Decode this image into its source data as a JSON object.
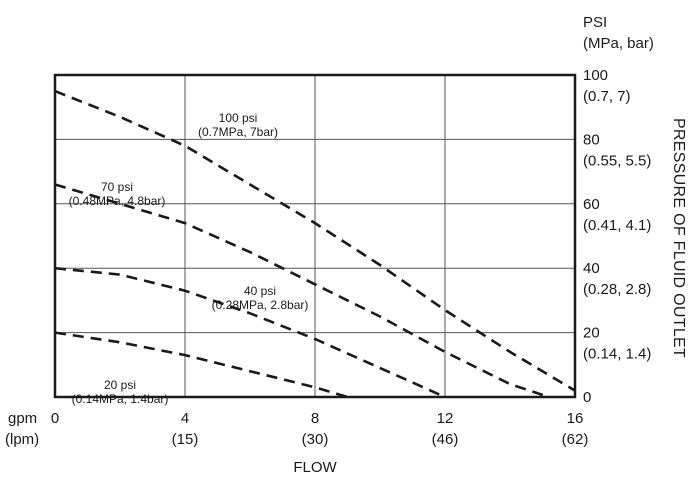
{
  "chart_data": {
    "type": "line",
    "title": "",
    "xlabel": "FLOW",
    "ylabel": "PRESSURE OF FLUID OUTLET",
    "x_unit_primary": "gpm",
    "x_unit_secondary": "(lpm)",
    "y_unit_primary": "PSI",
    "y_unit_secondary": "(MPa, bar)",
    "xlim": [
      0,
      16
    ],
    "ylim": [
      0,
      100
    ],
    "grid": true,
    "x_ticks": [
      {
        "value": 0,
        "primary": "0",
        "secondary": ""
      },
      {
        "value": 4,
        "primary": "4",
        "secondary": "(15)"
      },
      {
        "value": 8,
        "primary": "8",
        "secondary": "(30)"
      },
      {
        "value": 12,
        "primary": "12",
        "secondary": "(46)"
      },
      {
        "value": 16,
        "primary": "16",
        "secondary": "(62)"
      }
    ],
    "y_ticks": [
      {
        "value": 100,
        "primary": "100",
        "secondary": "(0.7, 7)"
      },
      {
        "value": 80,
        "primary": "80",
        "secondary": "(0.55, 5.5)"
      },
      {
        "value": 60,
        "primary": "60",
        "secondary": "(0.41, 4.1)"
      },
      {
        "value": 40,
        "primary": "40",
        "secondary": "(0.28, 2.8)"
      },
      {
        "value": 20,
        "primary": "20",
        "secondary": "(0.14, 1.4)"
      },
      {
        "value": 0,
        "primary": "0",
        "secondary": ""
      }
    ],
    "series": [
      {
        "name": "100 psi (0.7MPa, 7bar)",
        "label_line1": "100 psi",
        "label_line2": "(0.7MPa, 7bar)",
        "x": [
          0,
          2,
          4,
          6,
          8,
          10,
          12,
          14,
          16
        ],
        "y": [
          95,
          87,
          78,
          66,
          54,
          41,
          27,
          14,
          2
        ]
      },
      {
        "name": "70 psi (0.48MPa, 4.8bar)",
        "label_line1": "70 psi",
        "label_line2": "(0.48MPa, 4.8bar)",
        "x": [
          0,
          2,
          4,
          6,
          8,
          10,
          12,
          14,
          15.2
        ],
        "y": [
          66,
          60,
          54,
          45,
          35,
          25,
          14,
          4,
          0
        ]
      },
      {
        "name": "40 psi (0.28MPa, 2.8bar)",
        "label_line1": "40 psi",
        "label_line2": "(0.28MPa, 2.8bar)",
        "x": [
          0,
          2,
          4,
          6,
          8,
          10,
          12
        ],
        "y": [
          40,
          38,
          33,
          26,
          18,
          9,
          0
        ]
      },
      {
        "name": "20 psi (0.14MPa, 1.4bar)",
        "label_line1": "20 psi",
        "label_line2": "(0.14MPa, 1.4bar)",
        "x": [
          0,
          2,
          4,
          6,
          8,
          9
        ],
        "y": [
          20,
          17,
          13,
          8,
          3,
          0
        ]
      }
    ]
  }
}
